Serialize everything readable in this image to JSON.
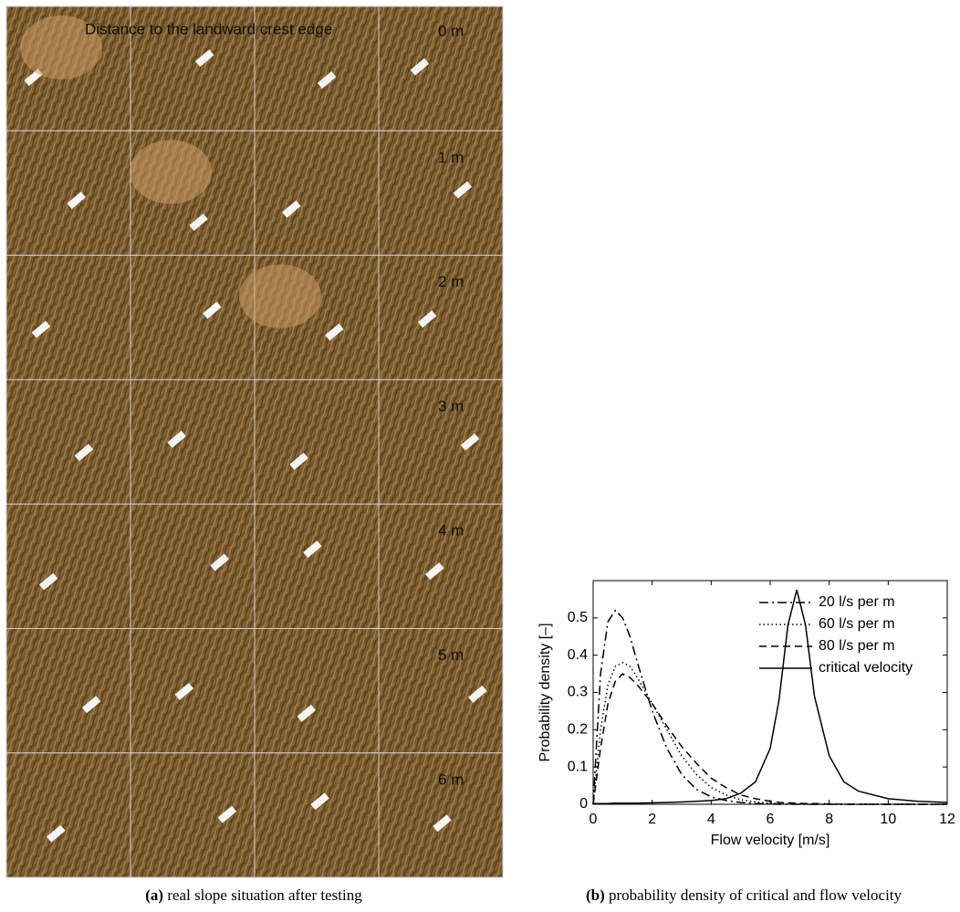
{
  "panel_a": {
    "heading": "Distance to the landward crest edge",
    "rows": [
      "0 m",
      "1 m",
      "2 m",
      "3 m",
      "4 m",
      "5 m",
      "6 m"
    ],
    "caption": {
      "label": "(a)",
      "text": "real slope situation after testing"
    }
  },
  "panel_b_caption": {
    "label": "(b)",
    "text": "probability density of critical and flow velocity"
  },
  "chart_data": {
    "type": "line",
    "x_label": "Flow velocity [m/s]",
    "y_label": "Probability density [–]",
    "x": [
      0,
      0.25,
      0.5,
      0.75,
      1,
      1.25,
      1.5,
      2,
      2.5,
      3,
      3.5,
      4,
      4.5,
      5,
      5.5,
      6,
      6.3,
      6.6,
      6.9,
      7.2,
      7.5,
      8,
      8.5,
      9,
      10,
      11,
      12
    ],
    "series": [
      {
        "name": "20 l/s per m",
        "color": "#000000",
        "style": "dashdot",
        "values": [
          0,
          0.35,
          0.49,
          0.52,
          0.5,
          0.45,
          0.38,
          0.25,
          0.15,
          0.08,
          0.04,
          0.02,
          0.01,
          0.005,
          0.002,
          0.001,
          0,
          0,
          0,
          0,
          0,
          0,
          0,
          0,
          0,
          0,
          0
        ]
      },
      {
        "name": "60 l/s per m",
        "color": "#000000",
        "style": "dotted",
        "values": [
          0,
          0.2,
          0.32,
          0.37,
          0.38,
          0.37,
          0.34,
          0.27,
          0.2,
          0.13,
          0.08,
          0.045,
          0.025,
          0.012,
          0.006,
          0.003,
          0.002,
          0.001,
          0.001,
          0,
          0,
          0,
          0,
          0,
          0,
          0,
          0
        ]
      },
      {
        "name": "80 l/s per m",
        "color": "#000000",
        "style": "dashed",
        "values": [
          0,
          0.15,
          0.27,
          0.33,
          0.35,
          0.34,
          0.32,
          0.27,
          0.21,
          0.155,
          0.11,
          0.07,
          0.045,
          0.025,
          0.015,
          0.008,
          0.005,
          0.004,
          0.003,
          0.002,
          0.002,
          0.001,
          0,
          0,
          0,
          0,
          0
        ]
      },
      {
        "name": "critical velocity",
        "color": "#000000",
        "style": "solid",
        "values": [
          0.002,
          0.002,
          0.002,
          0.003,
          0.003,
          0.003,
          0.003,
          0.004,
          0.005,
          0.006,
          0.008,
          0.01,
          0.015,
          0.03,
          0.06,
          0.15,
          0.28,
          0.48,
          0.575,
          0.48,
          0.29,
          0.13,
          0.06,
          0.035,
          0.015,
          0.008,
          0.005
        ]
      }
    ],
    "xlim": [
      0,
      12
    ],
    "xticks": [
      0,
      2,
      4,
      6,
      8,
      10,
      12
    ],
    "ylim": [
      0,
      0.6
    ],
    "yticks": [
      0,
      0.1,
      0.2,
      0.3,
      0.4,
      0.5
    ],
    "legend": "upper right",
    "grid": false
  }
}
